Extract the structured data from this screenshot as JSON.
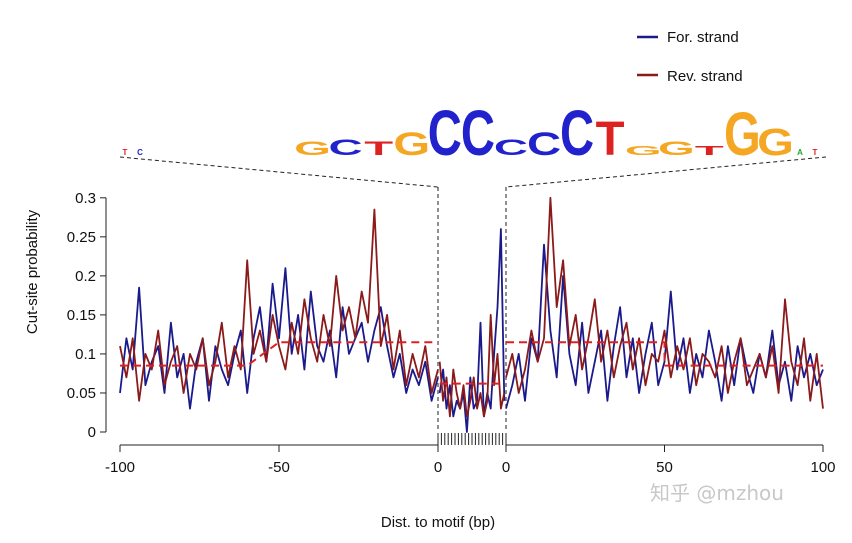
{
  "chart_data": {
    "type": "line",
    "xlabel": "Dist. to motif (bp)",
    "ylabel": "Cut-site probability",
    "ylim": [
      0,
      0.32
    ],
    "yticks": [
      0,
      0.05,
      0.1,
      0.15,
      0.2,
      0.25,
      0.3
    ],
    "ytick_labels": [
      "0",
      "0.05",
      "0.1",
      "0.15",
      "0.2",
      "0.25",
      "0.3"
    ],
    "left_panel": {
      "xlim": [
        -100,
        0
      ],
      "xticks": [
        -100,
        -50,
        0
      ],
      "xtick_labels": [
        "-100",
        "-50",
        "0"
      ]
    },
    "right_panel": {
      "xlim": [
        0,
        100
      ],
      "xticks": [
        0,
        50,
        100
      ],
      "xtick_labels": [
        "0",
        "50",
        "100"
      ]
    },
    "motif_positions": 20,
    "legend": {
      "placement": "top-right",
      "entries": [
        "For. strand",
        "Rev. strand"
      ]
    },
    "colors": {
      "forward": "#1a1a8c",
      "reverse": "#8b1a1a",
      "mean": "#e02020"
    },
    "series": [
      {
        "name": "For. strand",
        "segments": [
          {
            "region": "left",
            "x": [
              -100,
              -98,
              -96,
              -94,
              -92,
              -90,
              -88,
              -86,
              -84,
              -82,
              -80,
              -78,
              -76,
              -74,
              -72,
              -70,
              -68,
              -66,
              -64,
              -62,
              -60,
              -58,
              -56,
              -54,
              -52,
              -50,
              -48,
              -46,
              -44,
              -42,
              -40,
              -38,
              -36,
              -34,
              -32,
              -30,
              -28,
              -26,
              -24,
              -22,
              -20,
              -18,
              -16,
              -14,
              -12,
              -10,
              -8,
              -6,
              -4,
              -2,
              0
            ],
            "y": [
              0.05,
              0.12,
              0.08,
              0.185,
              0.06,
              0.09,
              0.11,
              0.05,
              0.14,
              0.07,
              0.1,
              0.03,
              0.09,
              0.12,
              0.04,
              0.11,
              0.08,
              0.06,
              0.1,
              0.13,
              0.05,
              0.12,
              0.16,
              0.09,
              0.19,
              0.12,
              0.21,
              0.1,
              0.15,
              0.08,
              0.18,
              0.11,
              0.09,
              0.13,
              0.07,
              0.16,
              0.1,
              0.12,
              0.14,
              0.09,
              0.13,
              0.16,
              0.11,
              0.07,
              0.1,
              0.05,
              0.08,
              0.06,
              0.09,
              0.04,
              0.07
            ]
          },
          {
            "region": "motif",
            "x": [
              1,
              2,
              3,
              4,
              5,
              6,
              7,
              8,
              9,
              10,
              11,
              12,
              13,
              14,
              15,
              16,
              17,
              18,
              19,
              20
            ],
            "y": [
              0.05,
              0.08,
              0.03,
              0.06,
              0.02,
              0.04,
              0.03,
              0.05,
              0.0,
              0.07,
              0.03,
              0.04,
              0.14,
              0.02,
              0.05,
              0.03,
              0.1,
              0.16,
              0.26,
              0.04
            ]
          },
          {
            "region": "right",
            "x": [
              0,
              2,
              4,
              6,
              8,
              10,
              12,
              14,
              16,
              18,
              20,
              22,
              24,
              26,
              28,
              30,
              32,
              34,
              36,
              38,
              40,
              42,
              44,
              46,
              48,
              50,
              52,
              54,
              56,
              58,
              60,
              62,
              64,
              66,
              68,
              70,
              72,
              74,
              76,
              78,
              80,
              82,
              84,
              86,
              88,
              90,
              92,
              94,
              96,
              98,
              100
            ],
            "y": [
              0.03,
              0.06,
              0.1,
              0.04,
              0.12,
              0.09,
              0.24,
              0.13,
              0.07,
              0.2,
              0.1,
              0.06,
              0.14,
              0.05,
              0.09,
              0.13,
              0.04,
              0.11,
              0.16,
              0.07,
              0.12,
              0.05,
              0.1,
              0.14,
              0.06,
              0.09,
              0.18,
              0.08,
              0.12,
              0.05,
              0.1,
              0.07,
              0.13,
              0.09,
              0.04,
              0.11,
              0.06,
              0.12,
              0.08,
              0.05,
              0.1,
              0.07,
              0.13,
              0.06,
              0.09,
              0.04,
              0.11,
              0.07,
              0.1,
              0.06,
              0.08
            ]
          }
        ]
      },
      {
        "name": "Rev. strand",
        "segments": [
          {
            "region": "left",
            "x": [
              -100,
              -98,
              -96,
              -94,
              -92,
              -90,
              -88,
              -86,
              -84,
              -82,
              -80,
              -78,
              -76,
              -74,
              -72,
              -70,
              -68,
              -66,
              -64,
              -62,
              -60,
              -58,
              -56,
              -54,
              -52,
              -50,
              -48,
              -46,
              -44,
              -42,
              -40,
              -38,
              -36,
              -34,
              -32,
              -30,
              -28,
              -26,
              -24,
              -22,
              -20,
              -18,
              -16,
              -14,
              -12,
              -10,
              -8,
              -6,
              -4,
              -2,
              0
            ],
            "y": [
              0.11,
              0.07,
              0.12,
              0.04,
              0.1,
              0.08,
              0.13,
              0.06,
              0.09,
              0.11,
              0.05,
              0.1,
              0.08,
              0.12,
              0.06,
              0.09,
              0.14,
              0.07,
              0.11,
              0.08,
              0.22,
              0.1,
              0.13,
              0.09,
              0.15,
              0.11,
              0.08,
              0.14,
              0.1,
              0.17,
              0.12,
              0.09,
              0.15,
              0.11,
              0.2,
              0.13,
              0.16,
              0.12,
              0.18,
              0.14,
              0.285,
              0.11,
              0.15,
              0.08,
              0.13,
              0.06,
              0.1,
              0.07,
              0.11,
              0.05,
              0.08
            ]
          },
          {
            "region": "motif",
            "x": [
              1,
              2,
              3,
              4,
              5,
              6,
              7,
              8,
              9,
              10,
              11,
              12,
              13,
              14,
              15,
              16,
              17,
              18,
              19,
              20
            ],
            "y": [
              0.09,
              0.04,
              0.07,
              0.02,
              0.08,
              0.05,
              0.03,
              0.06,
              0.02,
              0.04,
              0.07,
              0.03,
              0.05,
              0.02,
              0.04,
              0.15,
              0.06,
              0.1,
              0.03,
              0.05
            ]
          },
          {
            "region": "right",
            "x": [
              0,
              2,
              4,
              6,
              8,
              10,
              12,
              14,
              16,
              18,
              20,
              22,
              24,
              26,
              28,
              30,
              32,
              34,
              36,
              38,
              40,
              42,
              44,
              46,
              48,
              50,
              52,
              54,
              56,
              58,
              60,
              62,
              64,
              66,
              68,
              70,
              72,
              74,
              76,
              78,
              80,
              82,
              84,
              86,
              88,
              90,
              92,
              94,
              96,
              98,
              100
            ],
            "y": [
              0.07,
              0.1,
              0.05,
              0.08,
              0.13,
              0.09,
              0.12,
              0.3,
              0.16,
              0.22,
              0.11,
              0.15,
              0.08,
              0.12,
              0.17,
              0.09,
              0.13,
              0.07,
              0.11,
              0.14,
              0.08,
              0.12,
              0.06,
              0.1,
              0.09,
              0.13,
              0.07,
              0.11,
              0.08,
              0.12,
              0.06,
              0.1,
              0.09,
              0.07,
              0.11,
              0.05,
              0.09,
              0.12,
              0.06,
              0.08,
              0.1,
              0.07,
              0.11,
              0.05,
              0.17,
              0.09,
              0.06,
              0.12,
              0.04,
              0.1,
              0.03
            ]
          }
        ]
      },
      {
        "name": "",
        "dashed": true,
        "segments": [
          {
            "region": "left",
            "x": [
              -100,
              -60,
              -50,
              0
            ],
            "y": [
              0.085,
              0.085,
              0.115,
              0.115
            ]
          },
          {
            "region": "motif",
            "x": [
              1,
              20
            ],
            "y": [
              0.062,
              0.062
            ]
          },
          {
            "region": "right",
            "x": [
              0,
              50,
              50,
              100
            ],
            "y": [
              0.115,
              0.115,
              0.085,
              0.085
            ]
          }
        ]
      }
    ]
  },
  "motif_logo": {
    "letters": [
      {
        "char": "G",
        "color": "#f5a623",
        "height": 0.3
      },
      {
        "char": "C",
        "color": "#2222cc",
        "height": 0.35
      },
      {
        "char": "T",
        "color": "#dd2222",
        "height": 0.3
      },
      {
        "char": "G",
        "color": "#f5a623",
        "height": 0.5
      },
      {
        "char": "C",
        "color": "#2222cc",
        "height": 1.0
      },
      {
        "char": "C",
        "color": "#2222cc",
        "height": 1.0
      },
      {
        "char": "C",
        "color": "#2222cc",
        "height": 0.35
      },
      {
        "char": "C",
        "color": "#2222cc",
        "height": 0.5
      },
      {
        "char": "C",
        "color": "#2222cc",
        "height": 1.0
      },
      {
        "char": "T",
        "color": "#dd2222",
        "height": 0.75
      },
      {
        "char": "G",
        "color": "#f5a623",
        "height": 0.2
      },
      {
        "char": "G",
        "color": "#f5a623",
        "height": 0.3
      },
      {
        "char": "T",
        "color": "#dd2222",
        "height": 0.2
      },
      {
        "char": "G",
        "color": "#f5a623",
        "height": 0.95
      },
      {
        "char": "G",
        "color": "#f5a623",
        "height": 0.6
      }
    ]
  },
  "watermark": "知乎 @mzhou"
}
